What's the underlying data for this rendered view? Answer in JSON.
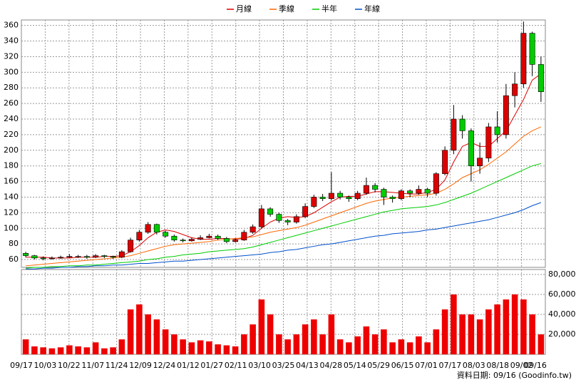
{
  "chart_data": {
    "type": "candlestick",
    "legend_position": "top",
    "grid": true,
    "up_color": "#dd0000",
    "down_color": "#00cc00",
    "ylim": [
      50,
      367
    ],
    "yticks": [
      60,
      80,
      100,
      120,
      140,
      160,
      180,
      200,
      220,
      240,
      260,
      280,
      300,
      320,
      340,
      360
    ],
    "x_labels": [
      "09/17",
      "10/03",
      "10/22",
      "11/07",
      "11/24",
      "12/09",
      "12/24",
      "01/12",
      "01/27",
      "02/11",
      "03/10",
      "03/25",
      "04/13",
      "04/28",
      "05/14",
      "05/29",
      "06/15",
      "07/01",
      "07/17",
      "08/03",
      "08/18",
      "09/02",
      "09/16"
    ],
    "open": [
      68,
      65,
      62,
      61,
      62,
      63,
      64,
      64,
      63,
      65,
      64,
      63,
      70,
      85,
      95,
      105,
      95,
      90,
      85,
      84,
      86,
      88,
      90,
      87,
      83,
      85,
      95,
      102,
      125,
      118,
      110,
      108,
      115,
      128,
      140,
      138,
      145,
      140,
      138,
      145,
      155,
      150,
      140,
      138,
      148,
      145,
      150,
      145,
      170,
      200,
      240,
      225,
      180,
      190,
      230,
      220,
      270,
      285,
      350,
      310
    ],
    "high": [
      70,
      66,
      64,
      64,
      65,
      67,
      66,
      66,
      67,
      66,
      65,
      72,
      88,
      98,
      108,
      106,
      97,
      92,
      87,
      88,
      91,
      93,
      92,
      89,
      87,
      98,
      105,
      130,
      127,
      120,
      112,
      118,
      132,
      143,
      144,
      172,
      148,
      142,
      148,
      165,
      158,
      152,
      142,
      150,
      150,
      155,
      152,
      172,
      205,
      258,
      245,
      228,
      210,
      235,
      250,
      285,
      300,
      365,
      352,
      320
    ],
    "low": [
      63,
      60,
      59,
      60,
      61,
      62,
      62,
      61,
      62,
      62,
      61,
      62,
      69,
      83,
      93,
      92,
      88,
      83,
      82,
      83,
      85,
      87,
      85,
      81,
      82,
      84,
      93,
      100,
      115,
      107,
      104,
      106,
      113,
      126,
      135,
      136,
      137,
      134,
      136,
      143,
      146,
      130,
      133,
      136,
      140,
      143,
      140,
      142,
      168,
      195,
      215,
      160,
      170,
      185,
      210,
      215,
      255,
      280,
      295,
      262
    ],
    "close": [
      65,
      62,
      61,
      62,
      63,
      64,
      64,
      63,
      65,
      64,
      63,
      70,
      85,
      95,
      105,
      95,
      90,
      85,
      84,
      86,
      88,
      90,
      87,
      83,
      85,
      95,
      102,
      125,
      118,
      110,
      108,
      115,
      128,
      140,
      138,
      145,
      140,
      138,
      145,
      155,
      150,
      140,
      138,
      148,
      145,
      150,
      145,
      170,
      200,
      240,
      225,
      180,
      190,
      230,
      220,
      270,
      285,
      350,
      310,
      275
    ],
    "series": [
      {
        "name": "月線",
        "color": "#dd0000",
        "values": [
          63,
          63,
          63,
          62,
          62,
          62,
          63,
          63,
          63,
          64,
          64,
          65,
          70,
          78,
          88,
          95,
          98,
          96,
          92,
          88,
          86,
          86,
          87,
          87,
          86,
          87,
          91,
          100,
          108,
          113,
          115,
          114,
          115,
          120,
          127,
          134,
          140,
          141,
          141,
          144,
          147,
          147,
          146,
          145,
          144,
          144,
          146,
          150,
          162,
          185,
          205,
          210,
          205,
          205,
          215,
          225,
          245,
          265,
          290,
          298
        ]
      },
      {
        "name": "季線",
        "color": "#ff6600",
        "values": [
          52,
          53,
          54,
          55,
          56,
          57,
          58,
          59,
          60,
          61,
          62,
          63,
          65,
          68,
          71,
          74,
          77,
          79,
          80,
          81,
          82,
          83,
          85,
          86,
          87,
          88,
          89,
          92,
          95,
          97,
          99,
          101,
          104,
          108,
          112,
          116,
          120,
          124,
          128,
          132,
          135,
          137,
          139,
          140,
          141,
          142,
          143,
          145,
          150,
          157,
          165,
          170,
          175,
          182,
          190,
          198,
          208,
          218,
          225,
          230
        ]
      },
      {
        "name": "半年",
        "color": "#00cc00",
        "values": [
          49,
          50,
          50,
          51,
          51,
          52,
          52,
          53,
          53,
          54,
          55,
          56,
          57,
          58,
          60,
          61,
          63,
          64,
          66,
          67,
          68,
          70,
          71,
          72,
          73,
          74,
          76,
          79,
          82,
          85,
          88,
          91,
          94,
          97,
          100,
          103,
          106,
          109,
          112,
          115,
          118,
          121,
          123,
          125,
          126,
          127,
          128,
          130,
          133,
          137,
          141,
          145,
          150,
          155,
          160,
          165,
          170,
          175,
          180,
          183
        ]
      },
      {
        "name": "年線",
        "color": "#0050cc",
        "values": [
          48,
          48,
          49,
          49,
          50,
          50,
          51,
          51,
          52,
          52,
          53,
          53,
          54,
          55,
          55,
          56,
          57,
          58,
          58,
          59,
          60,
          61,
          62,
          63,
          64,
          65,
          66,
          67,
          69,
          70,
          72,
          73,
          75,
          77,
          79,
          80,
          82,
          84,
          86,
          88,
          90,
          91,
          93,
          94,
          95,
          96,
          98,
          99,
          101,
          103,
          105,
          107,
          109,
          111,
          114,
          117,
          120,
          124,
          129,
          133
        ]
      }
    ],
    "volume": {
      "color": "#ee0000",
      "ylim": [
        0,
        85000
      ],
      "yticks": [
        {
          "value": 20000,
          "label": "20,000"
        },
        {
          "value": 40000,
          "label": "40,000"
        },
        {
          "value": 60000,
          "label": "60,000"
        },
        {
          "value": 80000,
          "label": "80,000"
        }
      ],
      "values": [
        15000,
        8000,
        7000,
        6000,
        7000,
        9000,
        8000,
        7000,
        12000,
        6000,
        7000,
        15000,
        45000,
        50000,
        40000,
        35000,
        25000,
        20000,
        15000,
        12000,
        14000,
        13000,
        10000,
        9000,
        8000,
        20000,
        30000,
        55000,
        40000,
        20000,
        15000,
        20000,
        30000,
        35000,
        20000,
        40000,
        15000,
        12000,
        18000,
        28000,
        20000,
        25000,
        12000,
        15000,
        12000,
        18000,
        12000,
        25000,
        45000,
        60000,
        40000,
        40000,
        35000,
        45000,
        50000,
        55000,
        60000,
        55000,
        40000,
        20000
      ]
    },
    "footer": "資料日期: 09/16 (Goodinfo.tw)"
  }
}
